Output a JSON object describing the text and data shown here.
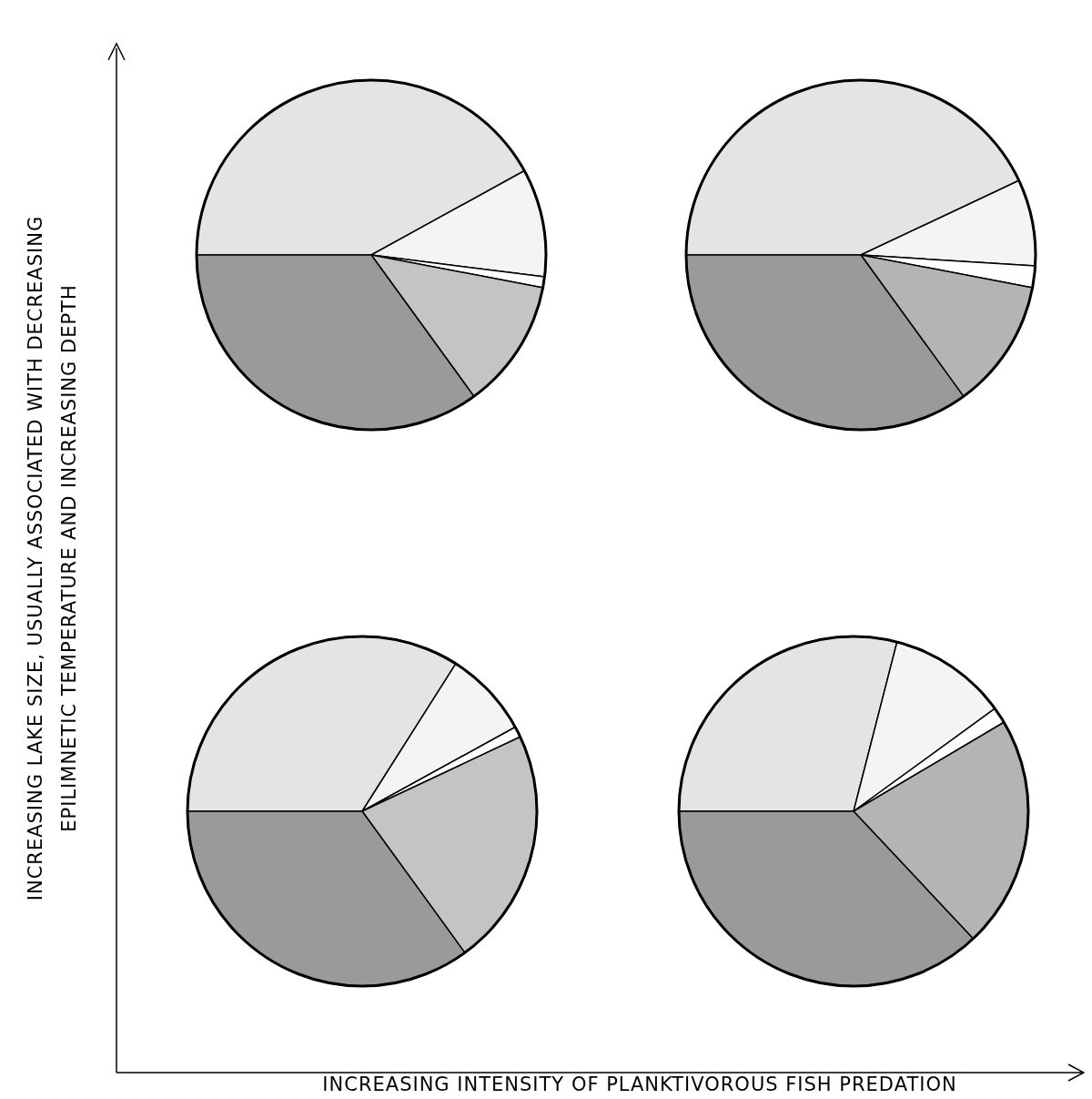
{
  "chart_data": [
    {
      "type": "pie",
      "xlabel": "INCREASING INTENSITY OF PLANKTIVOROUS FISH PREDATION",
      "ylabel": "INCREASING LAKE SIZE, USUALLY ASSOCIATED WITH DECREASING\nEPILIMNETIC TEMPERATURE AND INCREASING DEPTH",
      "categories": [
        null,
        null,
        null,
        null,
        null
      ],
      "values": [
        42,
        10,
        1,
        12,
        35
      ],
      "colors": [
        "#e4e4e4",
        "#f4f4f4",
        "#ffffff",
        "#c4c4c4",
        "#9a9a9a"
      ]
    },
    {
      "type": "pie",
      "categories": [
        null,
        null,
        null,
        null,
        null
      ],
      "values": [
        43,
        8,
        2,
        12,
        35
      ],
      "colors": [
        "#e4e4e4",
        "#f4f4f4",
        "#ffffff",
        "#b4b4b4",
        "#9a9a9a"
      ]
    },
    {
      "type": "pie",
      "categories": [
        null,
        null,
        null,
        null,
        null
      ],
      "values": [
        34,
        8,
        1,
        22,
        35
      ],
      "colors": [
        "#e4e4e4",
        "#f4f4f4",
        "#ffffff",
        "#c4c4c4",
        "#9a9a9a"
      ]
    },
    {
      "type": "pie",
      "categories": [
        null,
        null,
        null,
        null,
        null
      ],
      "values": [
        29,
        11,
        1.5,
        21.5,
        37
      ],
      "colors": [
        "#e4e4e4",
        "#f4f4f4",
        "#ffffff",
        "#b4b4b4",
        "#9a9a9a"
      ]
    }
  ]
}
